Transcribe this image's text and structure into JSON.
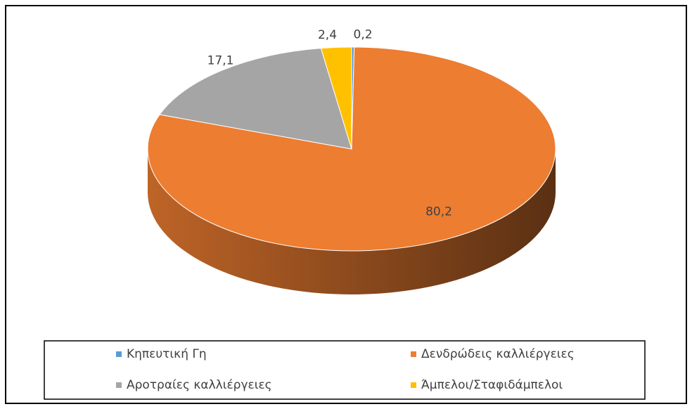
{
  "chart_data": {
    "type": "pie3d",
    "categories": [
      "Κηπευτική Γη",
      "Δενδρώδεις καλλιέργειες",
      "Αροτραίες καλλιέργειες",
      "Άμπελοι/Σταφιδάμπελοι"
    ],
    "values": [
      0.2,
      80.2,
      17.1,
      2.4
    ],
    "value_labels": [
      "0,2",
      "80,2",
      "17,1",
      "2,4"
    ],
    "colors": [
      "#5b9bd5",
      "#ed7d31",
      "#a5a5a5",
      "#ffc000"
    ],
    "legend": "bottom"
  }
}
